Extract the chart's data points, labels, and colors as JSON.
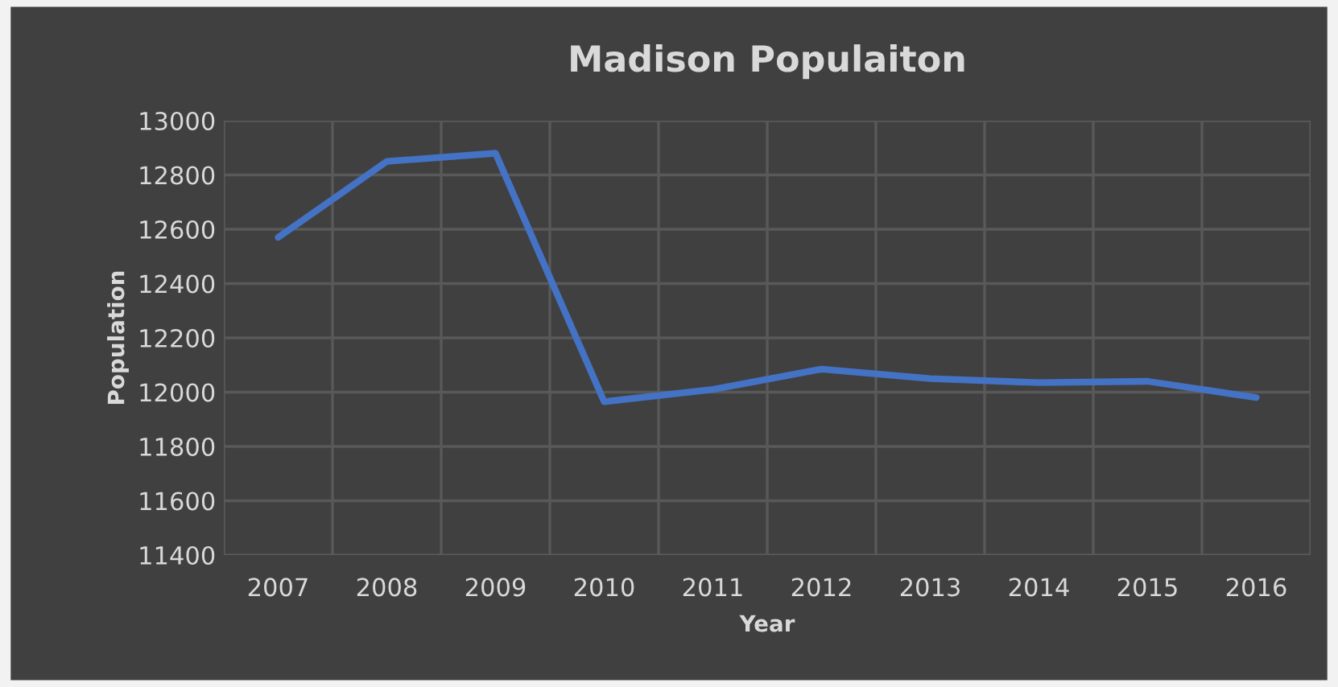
{
  "chart_data": {
    "type": "line",
    "title": "Madison Populaiton",
    "xlabel": "Year",
    "ylabel": "Population",
    "categories": [
      "2007",
      "2008",
      "2009",
      "2010",
      "2011",
      "2012",
      "2013",
      "2014",
      "2015",
      "2016"
    ],
    "series": [
      {
        "color": "#4472c4",
        "values": [
          12570,
          12850,
          12880,
          11965,
          12010,
          12085,
          12050,
          12035,
          12040,
          11980
        ]
      }
    ],
    "ylim": [
      11400,
      13000
    ],
    "yticks": [
      11400,
      11600,
      11800,
      12000,
      12200,
      12400,
      12600,
      12800,
      13000
    ],
    "grid": true,
    "marker": "none",
    "line_style": "solid"
  }
}
